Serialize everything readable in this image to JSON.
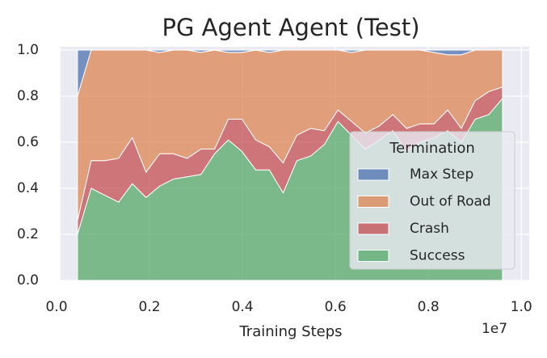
{
  "chart_data": {
    "type": "stacked_area",
    "title": "PG Agent Agent (Test)",
    "x_label": "Training Steps",
    "x_offset_label": "1e7",
    "legend_title": "Termination",
    "legend_position": "lower right",
    "grid": true,
    "x": [
      0.045,
      0.0745,
      0.104,
      0.1335,
      0.163,
      0.1925,
      0.222,
      0.2515,
      0.281,
      0.3105,
      0.34,
      0.3695,
      0.399,
      0.4285,
      0.458,
      0.4875,
      0.517,
      0.5465,
      0.576,
      0.6055,
      0.635,
      0.6645,
      0.694,
      0.7235,
      0.753,
      0.7825,
      0.812,
      0.8415,
      0.871,
      0.9005,
      0.93,
      0.9595
    ],
    "series": [
      {
        "name": "Max Step",
        "color": "#4c72b0",
        "values": [
          0.2,
          0,
          0,
          0,
          0,
          0,
          0.01,
          0,
          0,
          0.01,
          0,
          0.01,
          0.01,
          0,
          0.01,
          0,
          0,
          0,
          0,
          0,
          0.01,
          0,
          0,
          0,
          0,
          0,
          0.01,
          0.02,
          0.02,
          0,
          0,
          0
        ]
      },
      {
        "name": "Out of Road",
        "color": "#dd8452",
        "values": [
          0.54,
          0.48,
          0.48,
          0.47,
          0.38,
          0.53,
          0.44,
          0.45,
          0.47,
          0.42,
          0.43,
          0.29,
          0.29,
          0.39,
          0.41,
          0.49,
          0.37,
          0.34,
          0.35,
          0.26,
          0.3,
          0.36,
          0.33,
          0.28,
          0.34,
          0.32,
          0.31,
          0.24,
          0.32,
          0.22,
          0.18,
          0.16
        ]
      },
      {
        "name": "Crash",
        "color": "#c44e52",
        "values": [
          0.06,
          0.12,
          0.15,
          0.19,
          0.2,
          0.11,
          0.14,
          0.11,
          0.08,
          0.11,
          0.02,
          0.09,
          0.14,
          0.13,
          0.1,
          0.13,
          0.11,
          0.12,
          0.06,
          0.05,
          0.06,
          0.07,
          0.06,
          0.07,
          0.1,
          0.08,
          0.06,
          0.09,
          0.06,
          0.08,
          0.1,
          0.05
        ]
      },
      {
        "name": "Success",
        "color": "#55a868",
        "values": [
          0.2,
          0.4,
          0.37,
          0.34,
          0.42,
          0.36,
          0.41,
          0.44,
          0.45,
          0.46,
          0.55,
          0.61,
          0.56,
          0.48,
          0.48,
          0.38,
          0.52,
          0.54,
          0.59,
          0.69,
          0.63,
          0.57,
          0.61,
          0.65,
          0.56,
          0.6,
          0.62,
          0.65,
          0.6,
          0.7,
          0.72,
          0.79
        ]
      }
    ],
    "xlim": [
      0,
      1.017
    ],
    "xticks": [
      {
        "value": 0,
        "label": "0.0"
      },
      0.2,
      0.4,
      0.6,
      0.8,
      {
        "value": 1,
        "label": "1.0"
      }
    ],
    "ylim": [
      0,
      1
    ],
    "yticks": [
      {
        "value": 0,
        "label": "0.0"
      },
      0.2,
      0.4,
      0.6,
      0.8,
      {
        "value": 1,
        "label": "1.0"
      }
    ]
  }
}
